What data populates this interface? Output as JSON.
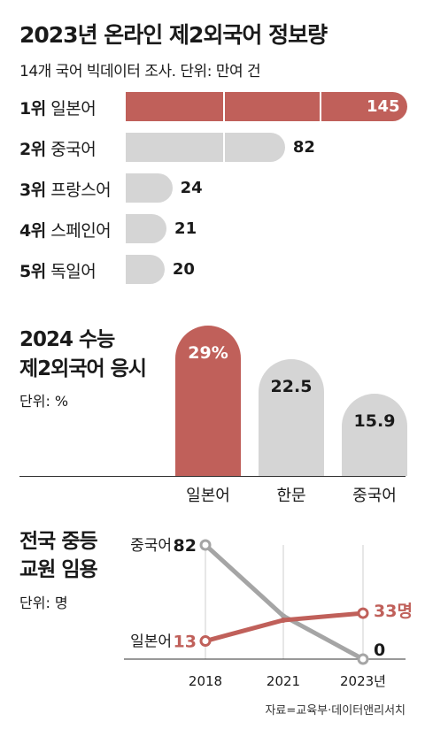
{
  "colors": {
    "accent": "#c0605a",
    "gray": "#d5d5d5",
    "line_gray": "#a5a5a5",
    "grid": "#cfcfcf"
  },
  "source": "자료=교육부·데이터앤리서치",
  "chart_data": [
    {
      "type": "bar",
      "orientation": "horizontal",
      "title": "2023년 온라인 제2외국어 정보량",
      "subtitle": "14개 국어 빅데이터 조사. 단위: 만여 건",
      "categories": [
        "일본어",
        "중국어",
        "프랑스어",
        "스페인어",
        "독일어"
      ],
      "ranks": [
        "1위",
        "2위",
        "3위",
        "4위",
        "5위"
      ],
      "values": [
        145,
        82,
        24,
        21,
        20
      ],
      "value_labels": [
        "145",
        "82",
        "24",
        "21",
        "20"
      ],
      "highlight_index": 0,
      "xlim": [
        0,
        145
      ],
      "grid_values": [
        50,
        100
      ]
    },
    {
      "type": "bar",
      "orientation": "vertical",
      "title_lines": [
        "2024 수능",
        "제2외국어 응시"
      ],
      "unit": "단위: %",
      "categories": [
        "일본어",
        "한문",
        "중국어"
      ],
      "values": [
        29,
        22.5,
        15.9
      ],
      "value_labels": [
        "29%",
        "22.5",
        "15.9"
      ],
      "highlight_index": 0,
      "ylim": [
        0,
        29
      ]
    },
    {
      "type": "line",
      "title_lines": [
        "전국 중등",
        "교원 임용"
      ],
      "unit": "단위: 명",
      "x": [
        "2018",
        "2021",
        "2023년"
      ],
      "series": [
        {
          "name": "중국어",
          "values": [
            82,
            31,
            0
          ],
          "start_label": "82",
          "end_label": "0"
        },
        {
          "name": "일본어",
          "values": [
            13,
            28,
            33
          ],
          "start_label": "13",
          "end_label": "33명"
        }
      ],
      "ylim": [
        0,
        82
      ]
    }
  ]
}
